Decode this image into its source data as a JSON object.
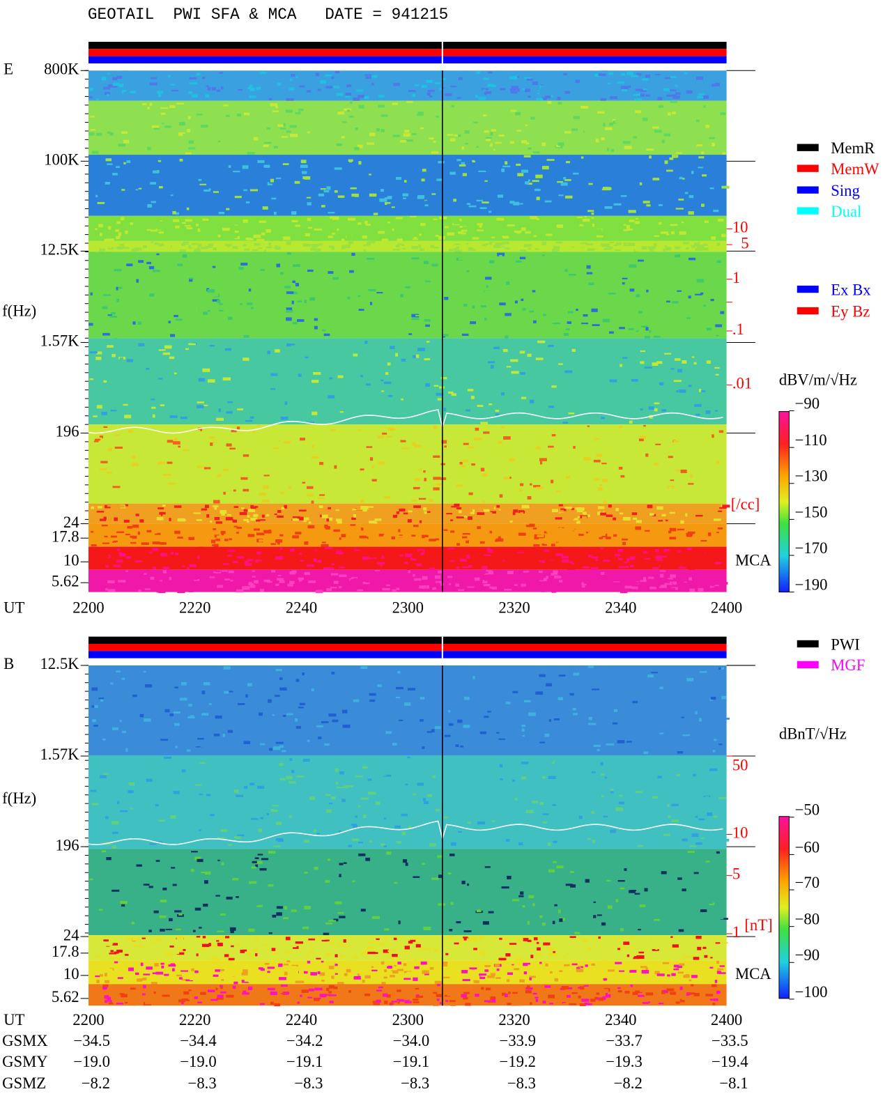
{
  "header": {
    "title": "GEOTAIL  PWI SFA & MCA   DATE = 941215"
  },
  "panels": [
    {
      "label": "E",
      "ylabel": "f(Hz)",
      "yticks": [
        "800K",
        "100K",
        "12.5K",
        "1.57K",
        "196",
        "24",
        "17.8",
        "10",
        "5.62"
      ],
      "xlabel": "UT",
      "xticks": [
        "2200",
        "2220",
        "2240",
        "2300",
        "2320",
        "2340",
        "2400"
      ],
      "density_ticks": [
        "10",
        "5",
        "1",
        ".1",
        ".01",
        "[/cc]"
      ],
      "mca": "MCA",
      "legend": [
        {
          "name": "MemR",
          "color": "#000000"
        },
        {
          "name": "MemW",
          "color": "#ff0000"
        },
        {
          "name": "Sing",
          "color": "#0000ff"
        },
        {
          "name": "Dual",
          "color": "#00ffff"
        },
        {
          "name": "Ex Bx",
          "color": "#0000ff"
        },
        {
          "name": "Ey Bz",
          "color": "#ff0000"
        }
      ],
      "colorbar": {
        "unit": "dBV/m/√Hz",
        "ticks": [
          "−90",
          "−110",
          "−130",
          "−150",
          "−170",
          "−190"
        ]
      }
    },
    {
      "label": "B",
      "ylabel": "f(Hz)",
      "yticks": [
        "12.5K",
        "1.57K",
        "196",
        "24",
        "17.8",
        "10",
        "5.62"
      ],
      "xlabel": "UT",
      "xticks": [
        "2200",
        "2220",
        "2240",
        "2300",
        "2320",
        "2340",
        "2400"
      ],
      "density_ticks": [
        "50",
        "10",
        "5",
        "1",
        "[nT]"
      ],
      "mca": "MCA",
      "legend": [
        {
          "name": "PWI",
          "color": "#000000"
        },
        {
          "name": "MGF",
          "color": "#ff00ff"
        }
      ],
      "colorbar": {
        "unit": "dBnT/√Hz",
        "ticks": [
          "−50",
          "−60",
          "−70",
          "−80",
          "−90",
          "−100"
        ]
      }
    }
  ],
  "orbit": {
    "rows": [
      {
        "name": "GSMX",
        "values": [
          "−34.5",
          "−34.4",
          "−34.2",
          "−34.0",
          "−33.9",
          "−33.7",
          "−33.5"
        ]
      },
      {
        "name": "GSMY",
        "values": [
          "−19.0",
          "−19.0",
          "−19.1",
          "−19.1",
          "−19.2",
          "−19.3",
          "−19.4"
        ]
      },
      {
        "name": "GSMZ",
        "values": [
          "−8.2",
          "−8.3",
          "−8.3",
          "−8.3",
          "−8.3",
          "−8.2",
          "−8.1"
        ]
      }
    ]
  }
}
